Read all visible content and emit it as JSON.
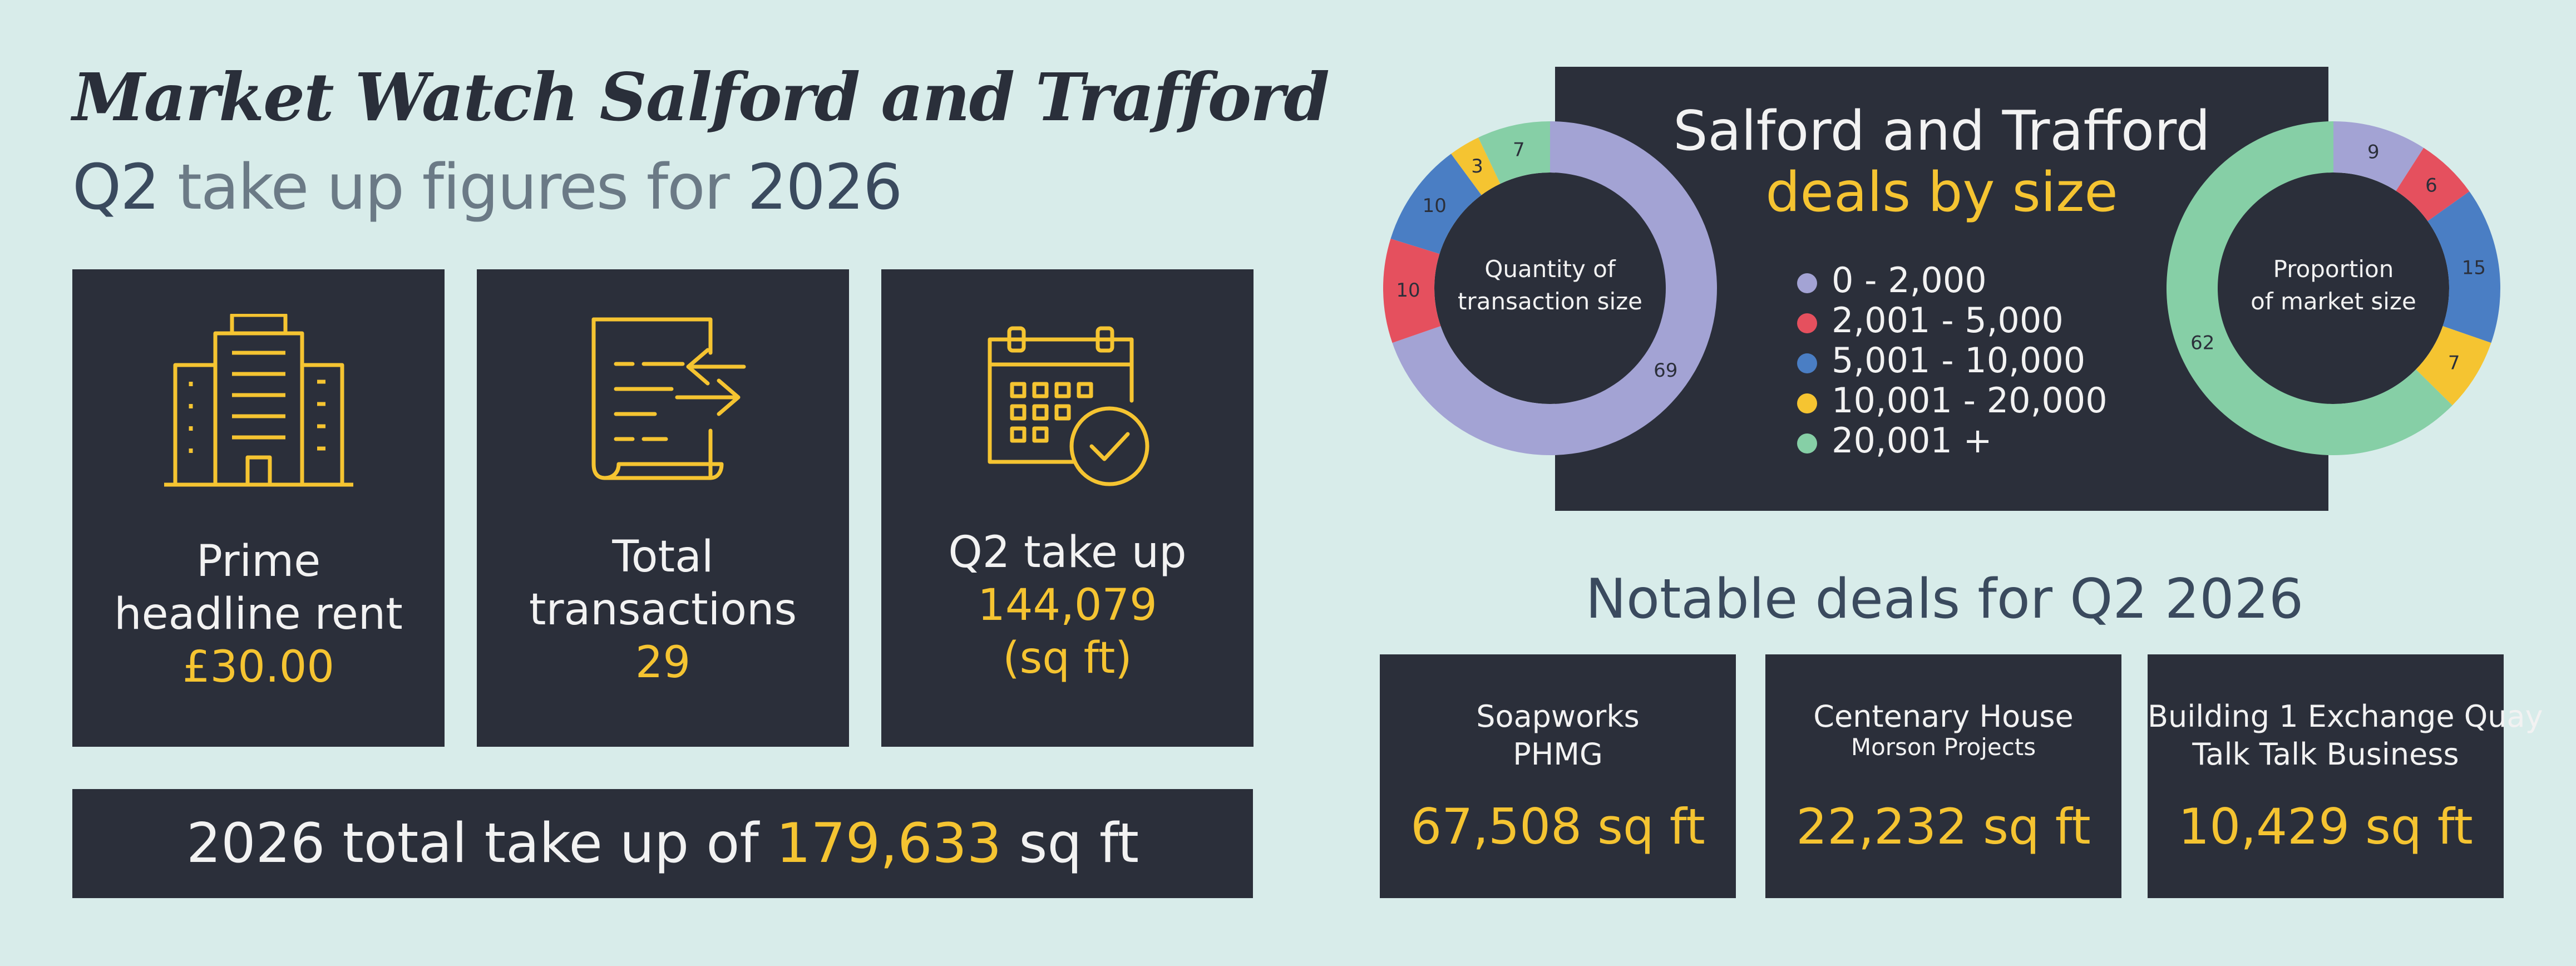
{
  "header": {
    "title": "Market Watch Salford and Trafford",
    "subtitle_prefix": "Q2",
    "subtitle_middle": " take up figures for ",
    "subtitle_year": "2026"
  },
  "stats": [
    {
      "label_line1": "Prime",
      "label_line2": "headline rent",
      "value": "£30.00",
      "icon": "office-building-icon"
    },
    {
      "label_line1": "Total",
      "label_line2": "transactions",
      "value": "29",
      "icon": "document-transfer-icon"
    },
    {
      "label_line1": "Q2 take up",
      "value": "144,079",
      "unit": "(sq ft)",
      "icon": "calendar-check-icon"
    }
  ],
  "total_bar": {
    "prefix": "2026 total take up of ",
    "value": "179,633",
    "suffix": " sq ft"
  },
  "deals_panel": {
    "title_line1": "Salford and Trafford",
    "title_line2": "deals by size"
  },
  "chart_data": [
    {
      "type": "pie",
      "title": "Quantity of transaction size",
      "center_label_line1": "Quantity of",
      "center_label_line2": "transaction size",
      "categories": [
        "0 - 2,000",
        "2,001 - 5,000",
        "5,001 - 10,000",
        "10,001 - 20,000",
        "20,001 +"
      ],
      "values": [
        69,
        10,
        10,
        3,
        7
      ],
      "colors": [
        "#a3a3d4",
        "#e5505e",
        "#4a7ec4",
        "#f5c431",
        "#86cfa6"
      ],
      "start_angle_deg": 0,
      "direction": "clockwise"
    },
    {
      "type": "pie",
      "title": "Proportion of market size",
      "center_label_line1": "Proportion",
      "center_label_line2": "of market size",
      "categories": [
        "0 - 2,000",
        "2,001 - 5,000",
        "5,001 - 10,000",
        "10,001 - 20,000",
        "20,001 +"
      ],
      "values": [
        9,
        6,
        15,
        7,
        62
      ],
      "colors": [
        "#a3a3d4",
        "#e5505e",
        "#4a7ec4",
        "#f5c431",
        "#86cfa6"
      ],
      "start_angle_deg": 0,
      "direction": "clockwise"
    }
  ],
  "legend": [
    {
      "label": "0 - 2,000",
      "color": "#a3a3d4"
    },
    {
      "label": "2,001 - 5,000",
      "color": "#e5505e"
    },
    {
      "label": "5,001 - 10,000",
      "color": "#4a7ec4"
    },
    {
      "label": "10,001 - 20,000",
      "color": "#f5c431"
    },
    {
      "label": "20,001 +",
      "color": "#86cfa6"
    }
  ],
  "notable": {
    "title": "Notable deals for Q2 2026",
    "deals": [
      {
        "name": "Soapworks",
        "company": "PHMG",
        "value": "67,508",
        "unit": " sq ft"
      },
      {
        "name": "Centenary House",
        "company": "Morson Projects",
        "value": "22,232",
        "unit": " sq ft"
      },
      {
        "name": "Building 1 Exchange Quay",
        "company": "Talk Talk Business",
        "value": "10,429",
        "unit": " sq ft"
      }
    ]
  },
  "colors": {
    "background": "#d8ecea",
    "card": "#2b2f3a",
    "accent": "#f5c431"
  }
}
